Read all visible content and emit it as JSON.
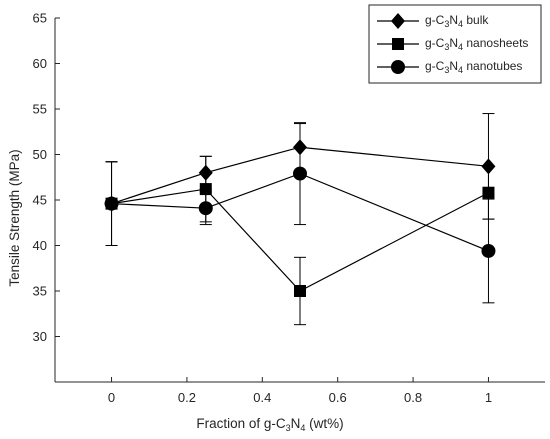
{
  "chart_data": {
    "type": "line",
    "xlabel": {
      "prefix": "Fraction of g-C",
      "sub1": "3",
      "mid": "N",
      "sub2": "4",
      "suffix": " (wt%)"
    },
    "ylabel": "Tensile Strength (MPa)",
    "xlim": [
      -0.15,
      1.15
    ],
    "ylim": [
      25,
      65
    ],
    "xticks": [
      0,
      0.2,
      0.4,
      0.6,
      0.8,
      1
    ],
    "xtick_labels": [
      "0",
      "0.2",
      "0.4",
      "0.6",
      "0.8",
      "1"
    ],
    "yticks": [
      30,
      35,
      40,
      45,
      50,
      55,
      60,
      65
    ],
    "ytick_labels": [
      "30",
      "35",
      "40",
      "45",
      "50",
      "55",
      "60",
      "65"
    ],
    "grid": false,
    "legend_position": "top-right",
    "series": [
      {
        "name": {
          "prefix": "g-C",
          "sub1": "3",
          "mid": "N",
          "sub2": "4",
          "suffix": " bulk"
        },
        "marker": "diamond",
        "x": [
          0,
          0.25,
          0.5,
          1
        ],
        "y": [
          44.6,
          48.0,
          50.8,
          48.7
        ],
        "err": [
          4.6,
          1.8,
          2.6,
          5.8
        ]
      },
      {
        "name": {
          "prefix": "g-C",
          "sub1": "3",
          "mid": "N",
          "sub2": "4",
          "suffix": " nanosheets"
        },
        "marker": "square",
        "x": [
          0,
          0.25,
          0.5,
          1
        ],
        "y": [
          44.6,
          46.2,
          35.0,
          45.8
        ],
        "err": [
          4.6,
          3.6,
          3.7,
          2.9
        ]
      },
      {
        "name": {
          "prefix": "g-C",
          "sub1": "3",
          "mid": "N",
          "sub2": "4",
          "suffix": " nanotubes"
        },
        "marker": "circle",
        "x": [
          0,
          0.25,
          0.5,
          1
        ],
        "y": [
          44.6,
          44.1,
          47.9,
          39.4
        ],
        "err": [
          4.6,
          1.8,
          5.6,
          5.7
        ]
      }
    ]
  }
}
